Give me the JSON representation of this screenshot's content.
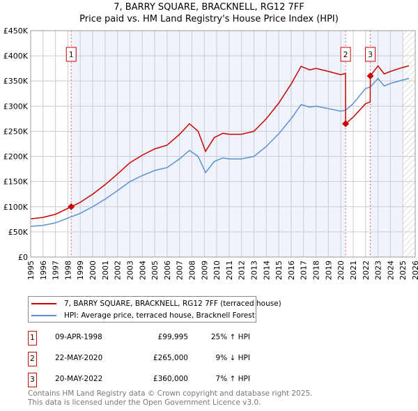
{
  "chart_data": {
    "type": "line",
    "title": "7, BARRY SQUARE, BRACKNELL, RG12 7FF",
    "subtitle": "Price paid vs. HM Land Registry's House Price Index (HPI)",
    "xlim": [
      1995,
      2026
    ],
    "ylim": [
      0,
      450000
    ],
    "x_ticks": [
      "1995",
      "1996",
      "1997",
      "1998",
      "1999",
      "2000",
      "2001",
      "2002",
      "2003",
      "2004",
      "2005",
      "2006",
      "2007",
      "2008",
      "2009",
      "2010",
      "2011",
      "2012",
      "2013",
      "2014",
      "2015",
      "2016",
      "2017",
      "2018",
      "2019",
      "2020",
      "2021",
      "2022",
      "2023",
      "2024",
      "2025",
      "2026"
    ],
    "y_ticks": [
      {
        "v": 0,
        "label": "£0"
      },
      {
        "v": 50000,
        "label": "£50K"
      },
      {
        "v": 100000,
        "label": "£100K"
      },
      {
        "v": 150000,
        "label": "£150K"
      },
      {
        "v": 200000,
        "label": "£200K"
      },
      {
        "v": 250000,
        "label": "£250K"
      },
      {
        "v": 300000,
        "label": "£300K"
      },
      {
        "v": 350000,
        "label": "£350K"
      },
      {
        "v": 400000,
        "label": "£400K"
      },
      {
        "v": 450000,
        "label": "£450K"
      }
    ],
    "grid": true,
    "series": [
      {
        "name": "7, BARRY SQUARE, BRACKNELL, RG12 7FF (terraced house)",
        "color": "#cc0000",
        "x": [
          1995,
          1996,
          1997,
          1998.27,
          1999,
          2000,
          2001,
          2002,
          2003,
          2004,
          2005,
          2006,
          2007,
          2007.8,
          2008.5,
          2009.1,
          2009.8,
          2010.5,
          2011,
          2012,
          2013,
          2014,
          2015,
          2016,
          2016.8,
          2017.5,
          2018,
          2019,
          2020,
          2020.38,
          2020.39,
          2021,
          2022,
          2022.37,
          2022.38,
          2023,
          2023.5,
          2024,
          2025,
          2025.5
        ],
        "y": [
          76000,
          78800,
          85000,
          99995,
          108800,
          125000,
          143800,
          165000,
          187500,
          202500,
          215000,
          222500,
          243800,
          265000,
          250000,
          210000,
          237500,
          246000,
          244000,
          244000,
          250000,
          275000,
          306000,
          344000,
          379000,
          372000,
          375000,
          369000,
          362500,
          365000,
          265000,
          278000,
          305000,
          308000,
          360000,
          380000,
          364000,
          369000,
          377000,
          380000
        ]
      },
      {
        "name": "HPI: Average price, terraced house, Bracknell Forest",
        "color": "#5b8fd4",
        "x": [
          1995,
          1996,
          1997,
          1998.27,
          1999,
          2000,
          2001,
          2002,
          2003,
          2004,
          2005,
          2006,
          2007,
          2007.8,
          2008.5,
          2009.1,
          2009.8,
          2010.5,
          2011,
          2012,
          2013,
          2014,
          2015,
          2016,
          2016.8,
          2017.5,
          2018,
          2019,
          2020,
          2020.39,
          2021,
          2022,
          2022.38,
          2023,
          2023.5,
          2024,
          2025,
          2025.5
        ],
        "y": [
          61000,
          63000,
          68000,
          80000,
          87000,
          100000,
          115000,
          132000,
          150000,
          162000,
          172000,
          178000,
          195000,
          212000,
          200000,
          168000,
          190000,
          197000,
          195000,
          195000,
          200000,
          220000,
          245000,
          275000,
          303000,
          298000,
          300000,
          295000,
          290000,
          292000,
          305000,
          335000,
          338000,
          355000,
          340000,
          345000,
          352000,
          355000
        ]
      }
    ],
    "sales": [
      {
        "label": "1",
        "x": 1998.27,
        "y": 99995,
        "date": "09-APR-1998",
        "price": "£99,995",
        "hpi": "25% ↑ HPI"
      },
      {
        "label": "2",
        "x": 2020.39,
        "y": 265000,
        "date": "22-MAY-2020",
        "price": "£265,000",
        "hpi": "9% ↓ HPI"
      },
      {
        "label": "3",
        "x": 2022.38,
        "y": 360000,
        "date": "20-MAY-2022",
        "price": "£360,000",
        "hpi": "7% ↑ HPI"
      }
    ],
    "forecast_from": 2025.0,
    "legend_placement": "below"
  },
  "footer": [
    "Contains HM Land Registry data © Crown copyright and database right 2025.",
    "This data is licensed under the Open Government Licence v3.0."
  ]
}
